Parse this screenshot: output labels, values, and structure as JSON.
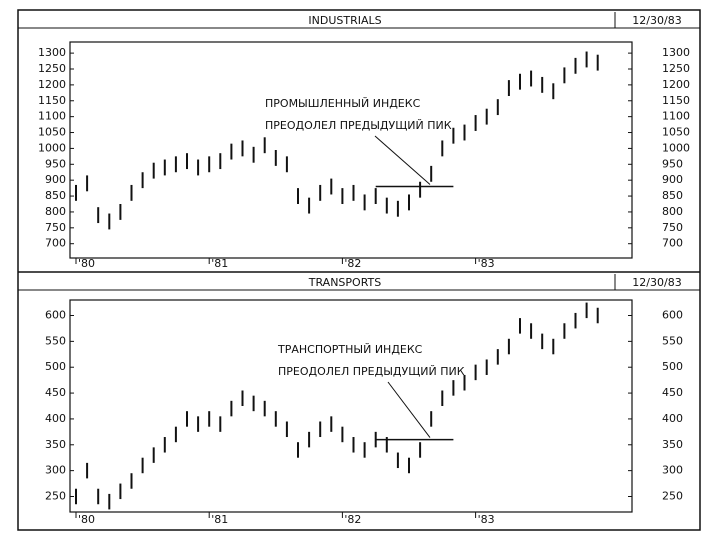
{
  "chart_data": [
    {
      "type": "hilo",
      "title": "INDUSTRIALS",
      "subtitle": "12/30/83",
      "categories": [
        "'80",
        null,
        null,
        null,
        null,
        null,
        null,
        null,
        null,
        null,
        null,
        null,
        "'81",
        null,
        null,
        null,
        null,
        null,
        null,
        null,
        null,
        null,
        null,
        null,
        "'82",
        null,
        null,
        null,
        null,
        null,
        null,
        null,
        null,
        null,
        null,
        null,
        "'83",
        null,
        null,
        null,
        null,
        null,
        null,
        null,
        null,
        null,
        null,
        null
      ],
      "low": [
        835,
        865,
        765,
        745,
        775,
        835,
        875,
        905,
        915,
        925,
        935,
        915,
        925,
        935,
        965,
        975,
        955,
        985,
        945,
        925,
        825,
        795,
        835,
        855,
        825,
        835,
        805,
        825,
        795,
        785,
        805,
        845,
        895,
        975,
        1015,
        1025,
        1055,
        1075,
        1105,
        1165,
        1185,
        1195,
        1175,
        1155,
        1205,
        1235,
        1255,
        1245
      ],
      "high": [
        885,
        915,
        815,
        795,
        825,
        885,
        925,
        955,
        965,
        975,
        985,
        965,
        975,
        985,
        1015,
        1025,
        1005,
        1035,
        995,
        975,
        875,
        845,
        885,
        905,
        875,
        885,
        855,
        875,
        845,
        835,
        855,
        895,
        945,
        1025,
        1065,
        1075,
        1105,
        1125,
        1155,
        1215,
        1235,
        1245,
        1225,
        1205,
        1255,
        1285,
        1305,
        1295
      ],
      "ylim": [
        655,
        1335
      ],
      "yticks": [
        700,
        750,
        800,
        850,
        900,
        950,
        1000,
        1050,
        1100,
        1150,
        1200,
        1250,
        1300
      ],
      "resistance_level": 880,
      "annotation": [
        "ПРОМЫШЛЕННЫЙ ИНДЕКС",
        "ПРЕОДОЛЕЛ ПРЕДЫДУЩИЙ ПИК"
      ],
      "color": "#111111"
    },
    {
      "type": "hilo",
      "title": "TRANSPORTS",
      "subtitle": "12/30/83",
      "categories": [
        "'80",
        null,
        null,
        null,
        null,
        null,
        null,
        null,
        null,
        null,
        null,
        null,
        "'81",
        null,
        null,
        null,
        null,
        null,
        null,
        null,
        null,
        null,
        null,
        null,
        "'82",
        null,
        null,
        null,
        null,
        null,
        null,
        null,
        null,
        null,
        null,
        null,
        "'83",
        null,
        null,
        null,
        null,
        null,
        null,
        null,
        null,
        null,
        null,
        null
      ],
      "low": [
        235,
        285,
        235,
        225,
        245,
        265,
        295,
        315,
        335,
        355,
        385,
        375,
        385,
        375,
        405,
        425,
        415,
        405,
        385,
        365,
        325,
        345,
        365,
        375,
        355,
        335,
        325,
        345,
        335,
        305,
        295,
        325,
        385,
        425,
        445,
        455,
        475,
        485,
        505,
        525,
        565,
        555,
        535,
        525,
        555,
        575,
        595,
        585
      ],
      "high": [
        265,
        315,
        265,
        255,
        275,
        295,
        325,
        345,
        365,
        385,
        415,
        405,
        415,
        405,
        435,
        455,
        445,
        435,
        415,
        395,
        355,
        375,
        395,
        405,
        385,
        365,
        355,
        375,
        365,
        335,
        325,
        355,
        415,
        455,
        475,
        485,
        505,
        515,
        535,
        555,
        595,
        585,
        565,
        555,
        585,
        605,
        625,
        615
      ],
      "ylim": [
        220,
        630
      ],
      "yticks": [
        250,
        300,
        350,
        400,
        450,
        500,
        550,
        600
      ],
      "resistance_level": 360,
      "annotation": [
        "ТРАНСПОРТНЫЙ ИНДЕКС",
        "ПРЕОДОЛЕЛ ПРЕДЫДУЩИЙ ПИК"
      ],
      "color": "#111111"
    }
  ]
}
